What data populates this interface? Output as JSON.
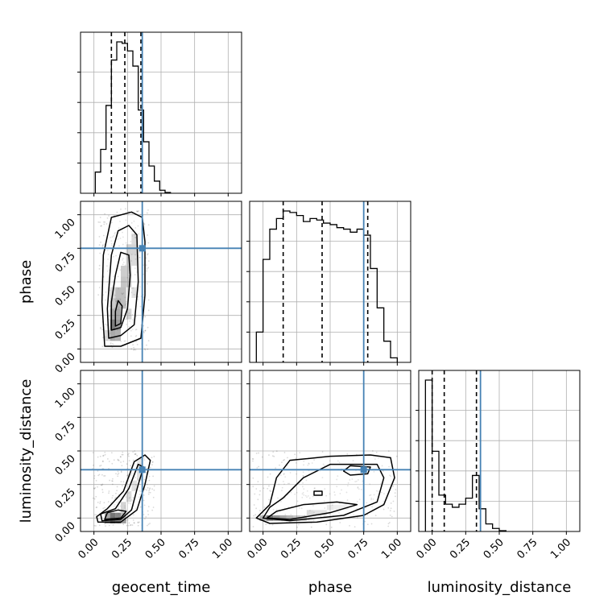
{
  "chart_data": {
    "type": "corner",
    "parameters": [
      "geocent_time",
      "phase",
      "luminosity_distance"
    ],
    "axis_range": [
      -0.1,
      1.1
    ],
    "ticks": [
      "0.00",
      "0.25",
      "0.50",
      "0.75",
      "1.00"
    ],
    "tick_values": [
      0.0,
      0.25,
      0.5,
      0.75,
      1.0
    ],
    "grid": true,
    "colors": {
      "truth": "#4682b4",
      "line": "#000000",
      "grid": "#b0b0b0"
    },
    "truths": {
      "geocent_time": 0.36,
      "phase": 0.75,
      "luminosity_distance": 0.36
    },
    "quantiles": {
      "geocent_time": [
        0.13,
        0.23,
        0.35
      ],
      "phase": [
        0.15,
        0.44,
        0.78
      ],
      "luminosity_distance": [
        0.0,
        0.09,
        0.33
      ]
    },
    "histograms": {
      "geocent_time": {
        "edges": [
          0.01,
          0.05,
          0.09,
          0.13,
          0.17,
          0.21,
          0.25,
          0.29,
          0.33,
          0.37,
          0.41,
          0.45,
          0.49,
          0.53,
          0.57
        ],
        "counts": [
          0.14,
          0.29,
          0.58,
          0.88,
          1.0,
          0.99,
          0.94,
          0.84,
          0.55,
          0.34,
          0.18,
          0.08,
          0.02,
          0.005
        ]
      },
      "phase": {
        "edges": [
          -0.05,
          0.0,
          0.05,
          0.1,
          0.15,
          0.2,
          0.25,
          0.3,
          0.35,
          0.4,
          0.45,
          0.5,
          0.55,
          0.6,
          0.65,
          0.7,
          0.75,
          0.8,
          0.85,
          0.9,
          0.95,
          1.0
        ],
        "counts": [
          0.2,
          0.68,
          0.88,
          0.95,
          1.0,
          0.99,
          0.97,
          0.93,
          0.95,
          0.94,
          0.92,
          0.91,
          0.89,
          0.88,
          0.86,
          0.88,
          0.84,
          0.62,
          0.36,
          0.14,
          0.03
        ]
      },
      "luminosity_distance": {
        "edges": [
          -0.05,
          0.0,
          0.05,
          0.1,
          0.15,
          0.2,
          0.25,
          0.3,
          0.35,
          0.4,
          0.45,
          0.5,
          0.55
        ],
        "counts": [
          1.0,
          0.53,
          0.24,
          0.18,
          0.16,
          0.18,
          0.22,
          0.37,
          0.15,
          0.05,
          0.02,
          0.005
        ]
      }
    },
    "contours_2d": [
      {
        "x": "geocent_time",
        "y": "phase",
        "levels": [
          [
            [
              0.08,
              0.02
            ],
            [
              0.2,
              0.02
            ],
            [
              0.35,
              0.08
            ],
            [
              0.38,
              0.4
            ],
            [
              0.38,
              0.8
            ],
            [
              0.36,
              0.98
            ],
            [
              0.28,
              1.02
            ],
            [
              0.13,
              0.98
            ],
            [
              0.07,
              0.7
            ],
            [
              0.06,
              0.35
            ]
          ],
          [
            [
              0.11,
              0.08
            ],
            [
              0.2,
              0.1
            ],
            [
              0.3,
              0.18
            ],
            [
              0.33,
              0.5
            ],
            [
              0.32,
              0.85
            ],
            [
              0.26,
              0.92
            ],
            [
              0.18,
              0.88
            ],
            [
              0.13,
              0.7
            ],
            [
              0.1,
              0.3
            ]
          ],
          [
            [
              0.13,
              0.14
            ],
            [
              0.2,
              0.16
            ],
            [
              0.25,
              0.3
            ],
            [
              0.27,
              0.55
            ],
            [
              0.26,
              0.7
            ],
            [
              0.2,
              0.72
            ],
            [
              0.16,
              0.55
            ],
            [
              0.13,
              0.35
            ]
          ],
          [
            [
              0.16,
              0.17
            ],
            [
              0.2,
              0.19
            ],
            [
              0.21,
              0.32
            ],
            [
              0.18,
              0.36
            ],
            [
              0.16,
              0.28
            ]
          ]
        ]
      },
      {
        "x": "geocent_time",
        "y": "luminosity_distance",
        "levels": [
          [
            [
              0.03,
              -0.03
            ],
            [
              0.2,
              -0.03
            ],
            [
              0.32,
              0.06
            ],
            [
              0.38,
              0.25
            ],
            [
              0.42,
              0.43
            ],
            [
              0.38,
              0.47
            ],
            [
              0.3,
              0.42
            ],
            [
              0.22,
              0.2
            ],
            [
              0.1,
              0.07
            ],
            [
              0.02,
              0.01
            ]
          ],
          [
            [
              0.06,
              -0.02
            ],
            [
              0.2,
              -0.01
            ],
            [
              0.28,
              0.06
            ],
            [
              0.33,
              0.25
            ],
            [
              0.37,
              0.38
            ],
            [
              0.33,
              0.4
            ],
            [
              0.26,
              0.22
            ],
            [
              0.16,
              0.07
            ],
            [
              0.05,
              0.03
            ]
          ],
          [
            [
              0.08,
              -0.01
            ],
            [
              0.2,
              0.0
            ],
            [
              0.24,
              0.05
            ],
            [
              0.18,
              0.06
            ],
            [
              0.1,
              0.04
            ]
          ]
        ]
      },
      {
        "x": "phase",
        "y": "luminosity_distance",
        "levels": [
          [
            [
              -0.05,
              0.0
            ],
            [
              0.05,
              -0.04
            ],
            [
              0.4,
              -0.03
            ],
            [
              0.75,
              0.02
            ],
            [
              0.9,
              0.1
            ],
            [
              0.98,
              0.3
            ],
            [
              0.95,
              0.45
            ],
            [
              0.8,
              0.47
            ],
            [
              0.5,
              0.46
            ],
            [
              0.2,
              0.43
            ],
            [
              0.1,
              0.3
            ],
            [
              0.05,
              0.1
            ]
          ],
          [
            [
              0.0,
              0.0
            ],
            [
              0.2,
              -0.02
            ],
            [
              0.6,
              0.02
            ],
            [
              0.85,
              0.12
            ],
            [
              0.9,
              0.3
            ],
            [
              0.85,
              0.4
            ],
            [
              0.5,
              0.4
            ],
            [
              0.3,
              0.3
            ],
            [
              0.15,
              0.15
            ],
            [
              0.05,
              0.08
            ]
          ],
          [
            [
              0.03,
              0.0
            ],
            [
              0.2,
              -0.01
            ],
            [
              0.5,
              0.04
            ],
            [
              0.7,
              0.1
            ],
            [
              0.55,
              0.12
            ],
            [
              0.3,
              0.1
            ],
            [
              0.1,
              0.05
            ]
          ],
          [
            [
              0.65,
              0.32
            ],
            [
              0.78,
              0.33
            ],
            [
              0.8,
              0.38
            ],
            [
              0.65,
              0.39
            ],
            [
              0.6,
              0.35
            ]
          ],
          [
            [
              0.38,
              0.17
            ],
            [
              0.44,
              0.17
            ],
            [
              0.44,
              0.2
            ],
            [
              0.38,
              0.2
            ]
          ]
        ]
      }
    ],
    "density_2d": [
      {
        "x": "geocent_time",
        "y": "phase",
        "cells": [
          [
            0.14,
            0.18,
            0.9
          ],
          [
            0.18,
            0.18,
            0.7
          ],
          [
            0.14,
            0.1,
            0.6
          ],
          [
            0.18,
            0.1,
            0.55
          ],
          [
            0.14,
            0.26,
            0.55
          ],
          [
            0.18,
            0.26,
            0.6
          ],
          [
            0.18,
            0.34,
            0.5
          ],
          [
            0.22,
            0.34,
            0.45
          ],
          [
            0.18,
            0.42,
            0.45
          ],
          [
            0.22,
            0.42,
            0.45
          ],
          [
            0.22,
            0.5,
            0.4
          ],
          [
            0.26,
            0.5,
            0.35
          ],
          [
            0.22,
            0.58,
            0.35
          ],
          [
            0.26,
            0.58,
            0.35
          ],
          [
            0.26,
            0.66,
            0.3
          ],
          [
            0.3,
            0.66,
            0.25
          ],
          [
            0.3,
            0.74,
            0.3
          ],
          [
            0.26,
            0.74,
            0.3
          ],
          [
            0.3,
            0.82,
            0.25
          ],
          [
            0.14,
            0.34,
            0.35
          ],
          [
            0.14,
            0.42,
            0.25
          ],
          [
            0.26,
            0.26,
            0.3
          ],
          [
            0.3,
            0.42,
            0.2
          ],
          [
            0.1,
            0.1,
            0.25
          ]
        ],
        "cell_size": [
          0.04,
          0.08
        ]
      },
      {
        "x": "geocent_time",
        "y": "luminosity_distance",
        "cells": [
          [
            0.14,
            0.0,
            0.95
          ],
          [
            0.18,
            0.0,
            0.85
          ],
          [
            0.1,
            0.0,
            0.6
          ],
          [
            0.22,
            0.0,
            0.5
          ],
          [
            0.22,
            0.08,
            0.3
          ],
          [
            0.26,
            0.16,
            0.25
          ],
          [
            0.3,
            0.24,
            0.2
          ],
          [
            0.34,
            0.32,
            0.2
          ],
          [
            0.34,
            0.4,
            0.15
          ]
        ],
        "cell_size": [
          0.04,
          0.08
        ]
      },
      {
        "x": "phase",
        "y": "luminosity_distance",
        "cells": [
          [
            0.05,
            0.0,
            0.95
          ],
          [
            0.1,
            0.0,
            0.75
          ],
          [
            0.15,
            0.0,
            0.6
          ],
          [
            0.2,
            0.0,
            0.5
          ],
          [
            0.25,
            0.0,
            0.4
          ],
          [
            0.3,
            0.0,
            0.3
          ],
          [
            0.35,
            0.04,
            0.25
          ],
          [
            0.4,
            0.04,
            0.2
          ],
          [
            0.45,
            0.04,
            0.18
          ],
          [
            0.5,
            0.08,
            0.15
          ],
          [
            0.55,
            0.08,
            0.12
          ],
          [
            0.6,
            0.08,
            0.1
          ],
          [
            0.0,
            0.0,
            0.5
          ]
        ],
        "cell_size": [
          0.05,
          0.04
        ]
      }
    ]
  }
}
